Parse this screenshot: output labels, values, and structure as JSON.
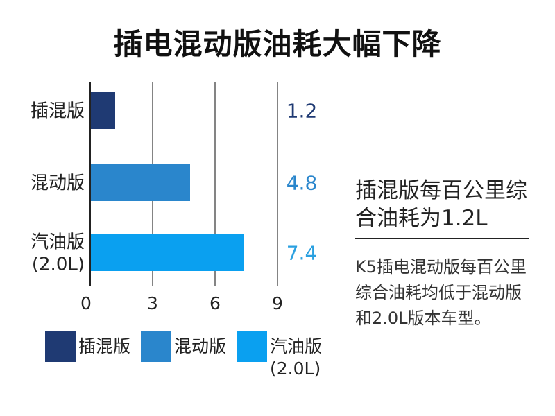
{
  "page": {
    "title": "插电混动版油耗大幅下降",
    "side_heading": "插混版每百公里综合油耗为1.2L",
    "side_description": "K5插电混动版每百公里综合油耗均低于混动版和2.0L版本车型。"
  },
  "chart_data": {
    "type": "bar",
    "orientation": "horizontal",
    "title": "插电混动版油耗大幅下降",
    "categories": [
      "插混版",
      "混动版",
      "汽油版\n(2.0L)"
    ],
    "values": [
      1.2,
      4.8,
      7.4
    ],
    "value_labels": [
      "1.2",
      "4.8",
      "7.4"
    ],
    "bar_colors": [
      "#1f3a73",
      "#2a86cc",
      "#0aa0f0"
    ],
    "value_label_colors": [
      "#1f3a73",
      "#2a86cc",
      "#2aa0e0"
    ],
    "xlim": [
      0,
      9
    ],
    "xticks": [
      0,
      3,
      6,
      9
    ],
    "xtick_labels": [
      "0",
      "3",
      "6",
      "9"
    ],
    "grid": true,
    "legend_position": "bottom",
    "legend": [
      {
        "label": "插混版",
        "color": "#1f3a73"
      },
      {
        "label": "混动版",
        "color": "#2a86cc"
      },
      {
        "label": "汽油版\n(2.0L)",
        "color": "#0aa0f0"
      }
    ]
  }
}
